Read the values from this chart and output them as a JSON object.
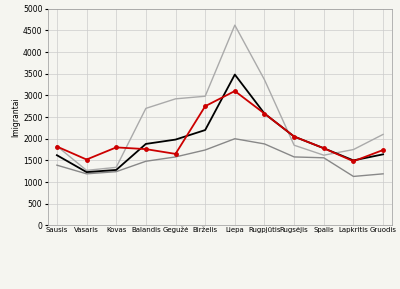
{
  "months": [
    "Sausis",
    "Vasaris",
    "Kovas",
    "Balandis",
    "Gegužė",
    "Birželis",
    "Liepa",
    "Rugpjūtis",
    "Rugsėjis",
    "Spalis",
    "Lapkritis",
    "Gruodis"
  ],
  "data_2014": [
    1620,
    1230,
    1280,
    1880,
    1980,
    2200,
    3480,
    2580,
    2050,
    1780,
    1500,
    1640
  ],
  "data_2015": [
    1820,
    1520,
    1800,
    1760,
    1650,
    2750,
    3100,
    2580,
    2050,
    1780,
    1480,
    1740
  ],
  "lower_bound": [
    1390,
    1190,
    1240,
    1480,
    1580,
    1740,
    2000,
    1880,
    1580,
    1560,
    1130,
    1190
  ],
  "upper_bound": [
    1830,
    1270,
    1340,
    2700,
    2920,
    2980,
    4620,
    3360,
    1850,
    1620,
    1750,
    2100
  ],
  "ylabel": "Imigrantai",
  "ylim": [
    0,
    5000
  ],
  "yticks": [
    0,
    500,
    1000,
    1500,
    2000,
    2500,
    3000,
    3500,
    4000,
    4500,
    5000
  ],
  "color_2014": "#000000",
  "color_2015": "#cc0000",
  "color_lower": "#888888",
  "color_upper": "#aaaaaa",
  "background": "#f5f5f0",
  "grid_color": "#cccccc"
}
